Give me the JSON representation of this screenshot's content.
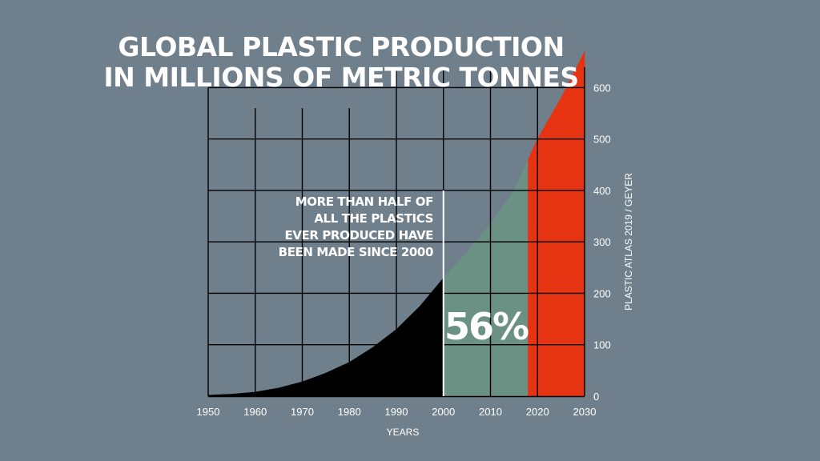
{
  "chart_data": {
    "type": "area",
    "title": [
      "GLOBAL PLASTIC  PRODUCTION",
      "IN MILLIONS OF METRIC TONNES"
    ],
    "xlabel": "YEARS",
    "x_ticks": [
      1950,
      1960,
      1970,
      1980,
      1990,
      2000,
      2010,
      2020,
      2030
    ],
    "y_ticks": [
      0,
      100,
      200,
      300,
      400,
      500,
      600
    ],
    "xlim": [
      1950,
      2030
    ],
    "ylim": [
      0,
      680
    ],
    "grid": true,
    "series": [
      {
        "color": "#000000",
        "x": [
          1950,
          1955,
          1960,
          1965,
          1970,
          1975,
          1980,
          1985,
          1990,
          1995,
          2000
        ],
        "y": [
          2,
          4,
          8,
          16,
          28,
          45,
          66,
          95,
          130,
          175,
          230
        ]
      },
      {
        "color": "#6a9184",
        "x": [
          2000,
          2005,
          2010,
          2015,
          2018
        ],
        "y": [
          230,
          280,
          335,
          400,
          460
        ]
      },
      {
        "color": "#e63312",
        "x": [
          2018,
          2020,
          2025,
          2030
        ],
        "y": [
          460,
          500,
          580,
          670
        ]
      }
    ],
    "divider_year": 2000,
    "annotations": {
      "note_lines": [
        "MORE THAN HALF OF",
        "ALL THE PLASTICS",
        "EVER PRODUCED HAVE",
        "BEEN MADE SINCE 2000"
      ],
      "share_label": "56%"
    },
    "source": "PLASTIC ATLAS 2019 / GEYER"
  }
}
